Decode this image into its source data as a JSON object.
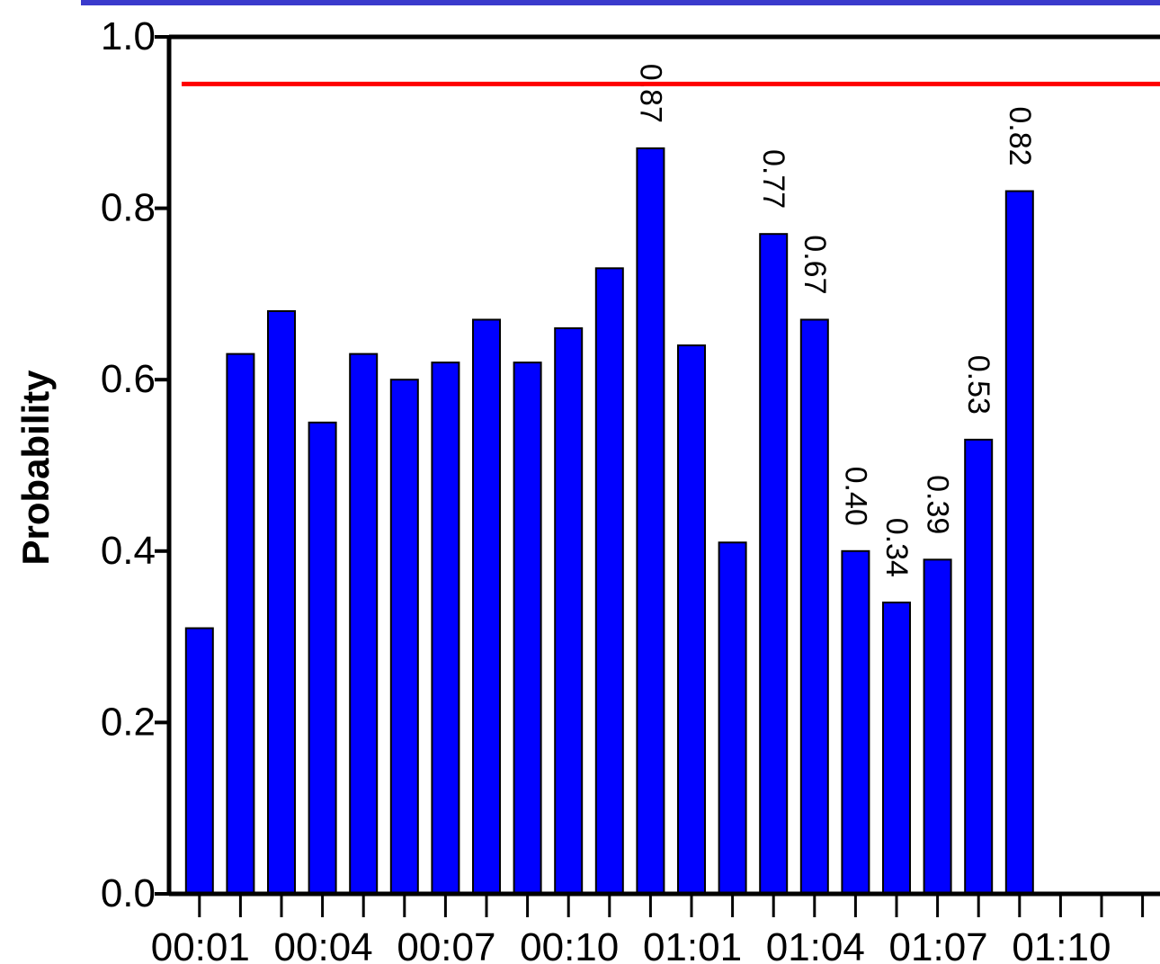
{
  "chart_data": {
    "type": "bar",
    "ylabel": "Probability",
    "xlabel": "",
    "ylim": [
      0.0,
      1.0
    ],
    "yticks": [
      "0.0",
      "0.2",
      "0.4",
      "0.6",
      "0.8",
      "1.0"
    ],
    "xtick_labels": [
      "00:01",
      "00:04",
      "00:07",
      "00:10",
      "01:01",
      "01:04",
      "01:07",
      "01:10"
    ],
    "categories": [
      "00:01",
      "00:02",
      "00:03",
      "00:04",
      "00:05",
      "00:06",
      "00:07",
      "00:08",
      "00:09",
      "00:10",
      "00:11",
      "00:12",
      "01:01",
      "01:02",
      "01:03",
      "01:04",
      "01:05",
      "01:06",
      "01:07",
      "01:08",
      "01:09",
      "01:10",
      "01:11",
      "01:12"
    ],
    "values": [
      0.31,
      0.63,
      0.68,
      0.55,
      0.63,
      0.6,
      0.62,
      0.67,
      0.62,
      0.66,
      0.73,
      0.87,
      0.64,
      0.41,
      0.77,
      0.67,
      0.4,
      0.34,
      0.39,
      0.53,
      0.82,
      null,
      null,
      null
    ],
    "data_labels": [
      "",
      "",
      "",
      "",
      "",
      "",
      "",
      "",
      "",
      "",
      "",
      "0.87",
      "",
      "",
      "0.77",
      "0.67",
      "0.40",
      "0.34",
      "0.39",
      "0.53",
      "0.82",
      "",
      "",
      ""
    ],
    "threshold": 0.945,
    "colors": {
      "bar": "#0000ff",
      "threshold": "#ff0000",
      "top_band": "#3a3acc"
    },
    "legend": "none",
    "grid": false
  }
}
